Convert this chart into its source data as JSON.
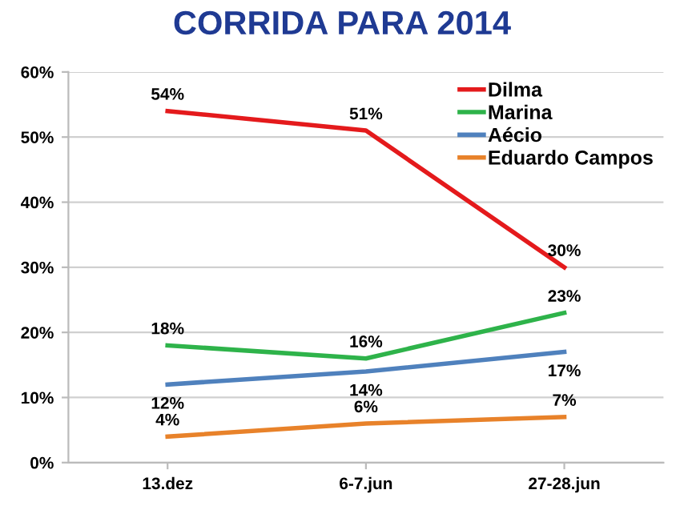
{
  "chart_data": {
    "type": "line",
    "title": "CORRIDA PARA 2014",
    "categories": [
      "13.dez",
      "6-7.jun",
      "27-28.jun"
    ],
    "series": [
      {
        "name": "Dilma",
        "color": "#e41a1c",
        "values": [
          54,
          51,
          30
        ],
        "value_labels": [
          "54%",
          "51%",
          "30%"
        ]
      },
      {
        "name": "Marina",
        "color": "#2eb34a",
        "values": [
          18,
          16,
          23
        ],
        "value_labels": [
          "18%",
          "16%",
          "23%"
        ]
      },
      {
        "name": "Aécio",
        "color": "#4f81bd",
        "values": [
          12,
          14,
          17
        ],
        "value_labels": [
          "12%",
          "14%",
          "17%"
        ]
      },
      {
        "name": "Eduardo Campos",
        "color": "#e8822a",
        "values": [
          4,
          6,
          7
        ],
        "value_labels": [
          "4%",
          "6%",
          "7%"
        ]
      }
    ],
    "ylim": [
      0,
      60
    ],
    "yticks": [
      {
        "value": 0,
        "label": "0%"
      },
      {
        "value": 10,
        "label": "10%"
      },
      {
        "value": 20,
        "label": "20%"
      },
      {
        "value": 30,
        "label": "30%"
      },
      {
        "value": 40,
        "label": "40%"
      },
      {
        "value": 50,
        "label": "50%"
      },
      {
        "value": 60,
        "label": "60%"
      }
    ],
    "grid": "y",
    "legend": "top right",
    "marker": "none",
    "line_style": "solid"
  }
}
